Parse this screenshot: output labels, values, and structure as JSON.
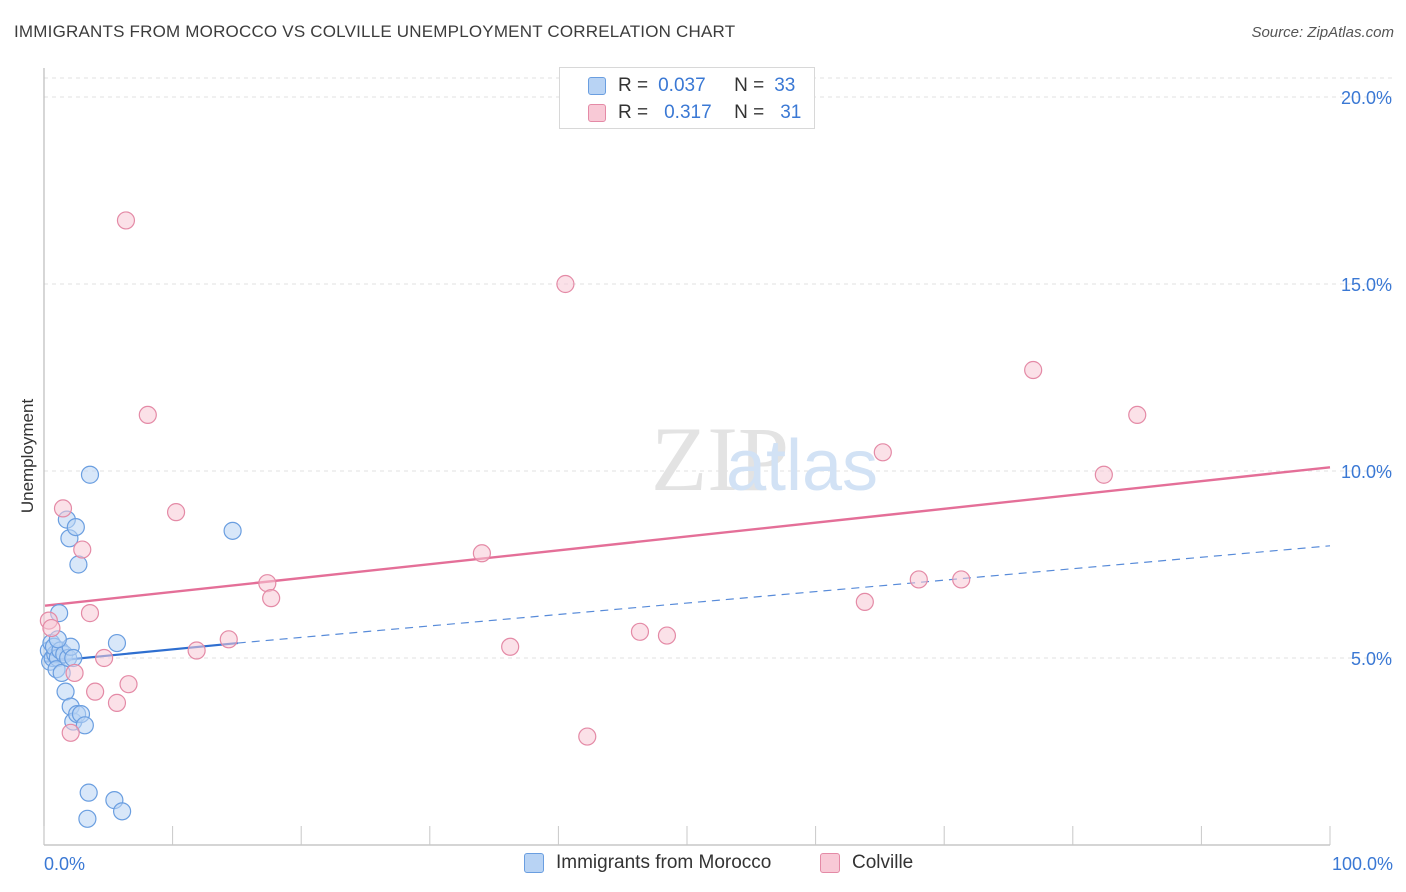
{
  "header": {
    "title": "IMMIGRANTS FROM MOROCCO VS COLVILLE UNEMPLOYMENT CORRELATION CHART",
    "source": "Source: ZipAtlas.com"
  },
  "watermark": {
    "zip": "ZIP",
    "atlas": "atlas"
  },
  "legend": {
    "r_label": "R =",
    "n_label": "N =",
    "rows": [
      {
        "series": "Immigrants from Morocco",
        "r": "0.037",
        "n": "33"
      },
      {
        "series": "Colville",
        "r": "0.317",
        "n": "31"
      }
    ]
  },
  "colors": {
    "blue_fill": "#b8d3f4",
    "blue_stroke": "#6a9ee0",
    "blue_line": "#2f6fd0",
    "pink_fill": "#f8c9d6",
    "pink_stroke": "#e48aa6",
    "pink_line": "#e46f98",
    "grid": "#e2e2e2",
    "tick_label": "#3a78d4"
  },
  "chart_data": {
    "type": "scatter",
    "title": "IMMIGRANTS FROM MOROCCO VS COLVILLE UNEMPLOYMENT CORRELATION CHART",
    "xlabel": "",
    "ylabel": "Unemployment",
    "xlim": [
      0,
      100
    ],
    "ylim": [
      0,
      20.5
    ],
    "x_tick_labels": [
      "0.0%",
      "100.0%"
    ],
    "y_ticks": [
      5,
      10,
      15,
      20
    ],
    "y_tick_labels": [
      "5.0%",
      "10.0%",
      "15.0%",
      "20.0%"
    ],
    "grid": true,
    "series": [
      {
        "name": "Immigrants from Morocco",
        "color": "blue",
        "points": [
          [
            0.3,
            5.2
          ],
          [
            0.5,
            5.4
          ],
          [
            0.4,
            4.9
          ],
          [
            0.6,
            5.0
          ],
          [
            0.8,
            5.1
          ],
          [
            0.7,
            5.3
          ],
          [
            1.0,
            5.0
          ],
          [
            1.2,
            5.2
          ],
          [
            0.9,
            4.7
          ],
          [
            1.3,
            4.6
          ],
          [
            1.5,
            5.1
          ],
          [
            1.8,
            5.0
          ],
          [
            2.0,
            5.3
          ],
          [
            2.2,
            5.0
          ],
          [
            1.1,
            6.2
          ],
          [
            1.6,
            4.1
          ],
          [
            2.0,
            3.7
          ],
          [
            2.2,
            3.3
          ],
          [
            2.5,
            3.5
          ],
          [
            2.8,
            3.5
          ],
          [
            3.1,
            3.2
          ],
          [
            1.7,
            8.7
          ],
          [
            1.9,
            8.2
          ],
          [
            2.4,
            8.5
          ],
          [
            2.6,
            7.5
          ],
          [
            3.5,
            9.9
          ],
          [
            5.6,
            5.4
          ],
          [
            14.6,
            8.4
          ],
          [
            3.4,
            1.4
          ],
          [
            5.4,
            1.2
          ],
          [
            3.3,
            0.7
          ],
          [
            6.0,
            0.9
          ],
          [
            1.0,
            5.5
          ]
        ],
        "trend": {
          "x0": 0,
          "y0": 4.9,
          "x1": 15,
          "y1": 5.4,
          "dashed_to_x": 100,
          "dashed_to_y": 8.0
        }
      },
      {
        "name": "Colville",
        "color": "pink",
        "points": [
          [
            0.3,
            6.0
          ],
          [
            0.5,
            5.8
          ],
          [
            1.4,
            9.0
          ],
          [
            2.9,
            7.9
          ],
          [
            3.5,
            6.2
          ],
          [
            2.3,
            4.6
          ],
          [
            3.9,
            4.1
          ],
          [
            4.6,
            5.0
          ],
          [
            5.6,
            3.8
          ],
          [
            6.5,
            4.3
          ],
          [
            6.3,
            16.7
          ],
          [
            8.0,
            11.5
          ],
          [
            10.2,
            8.9
          ],
          [
            11.8,
            5.2
          ],
          [
            14.3,
            5.5
          ],
          [
            17.3,
            7.0
          ],
          [
            17.6,
            6.6
          ],
          [
            2.0,
            3.0
          ],
          [
            40.5,
            15.0
          ],
          [
            34.0,
            7.8
          ],
          [
            36.2,
            5.3
          ],
          [
            42.2,
            2.9
          ],
          [
            46.3,
            5.7
          ],
          [
            48.4,
            5.6
          ],
          [
            63.8,
            6.5
          ],
          [
            65.2,
            10.5
          ],
          [
            68.0,
            7.1
          ],
          [
            71.3,
            7.1
          ],
          [
            76.9,
            12.7
          ],
          [
            82.4,
            9.9
          ],
          [
            85.0,
            11.5
          ]
        ],
        "trend": {
          "x0": 0,
          "y0": 6.4,
          "x1": 100,
          "y1": 10.1
        }
      }
    ]
  }
}
